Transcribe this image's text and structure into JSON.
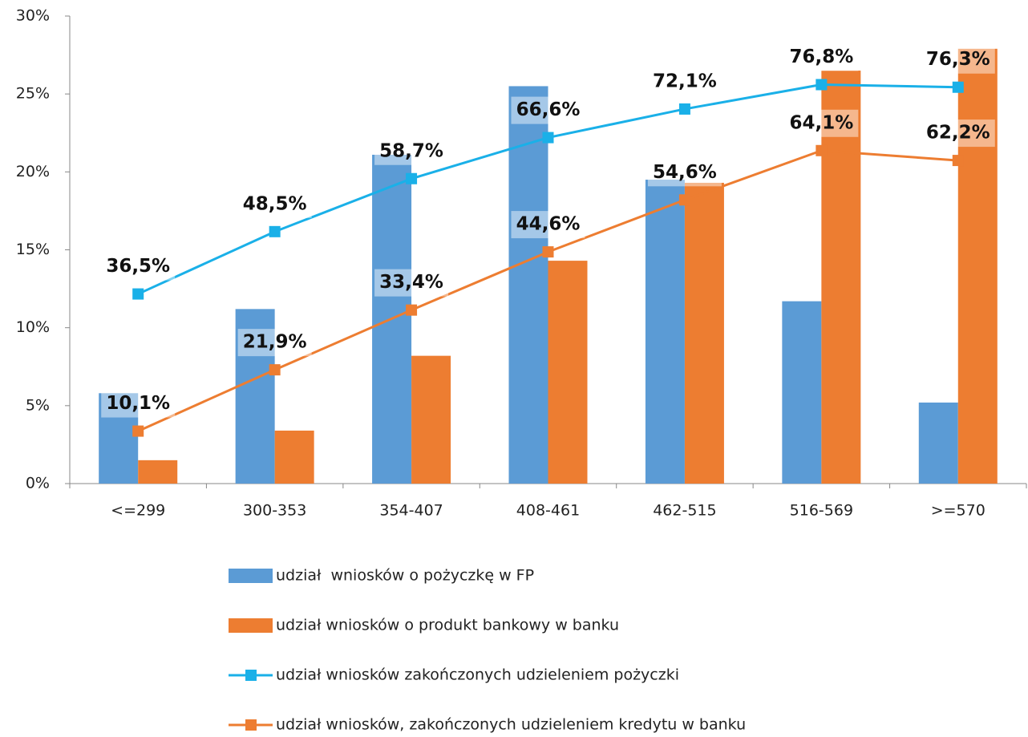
{
  "chart_data": {
    "type": "bar-line",
    "categories": [
      "<=299",
      "300-353",
      "354-407",
      "408-461",
      "462-515",
      "516-569",
      ">=570"
    ],
    "series": [
      {
        "name": "udział  wniosków o pożyczkę w FP",
        "type": "bar",
        "color": "#5b9bd5",
        "values": [
          5.8,
          11.2,
          21.1,
          25.5,
          19.5,
          11.7,
          5.2
        ]
      },
      {
        "name": "udział wniosków o produkt bankowy w banku",
        "type": "bar",
        "color": "#ed7d31",
        "values": [
          1.5,
          3.4,
          8.2,
          14.3,
          19.3,
          26.5,
          27.9
        ]
      },
      {
        "name": "udział wniosków zakończonych udzieleniem pożyczki",
        "type": "line",
        "axis": "y2",
        "color": "#1ab0e8",
        "values": [
          36.5,
          48.5,
          58.7,
          66.6,
          72.1,
          76.8,
          76.3
        ],
        "value_labels": [
          "36,5%",
          "48,5%",
          "58,7%",
          "66,6%",
          "72,1%",
          "76,8%",
          "76,3%"
        ]
      },
      {
        "name": "udział wniosków, zakończonych udzieleniem kredytu w banku",
        "type": "line",
        "axis": "y2",
        "color": "#ed7d31",
        "values": [
          10.1,
          21.9,
          33.4,
          44.6,
          54.6,
          64.1,
          62.2
        ],
        "value_labels": [
          "10,1%",
          "21,9%",
          "33,4%",
          "44,6%",
          "54,6%",
          "64,1%",
          "62,2%"
        ]
      }
    ],
    "ylim": [
      0,
      30
    ],
    "yticks": [
      {
        "value": 0,
        "label": "0%"
      },
      {
        "value": 5,
        "label": "5%"
      },
      {
        "value": 10,
        "label": "10%"
      },
      {
        "value": 15,
        "label": "15%"
      },
      {
        "value": 20,
        "label": "20%"
      },
      {
        "value": 25,
        "label": "25%"
      },
      {
        "value": 30,
        "label": "30%"
      }
    ],
    "y2lim": [
      0,
      90
    ],
    "legend": "bottom"
  }
}
